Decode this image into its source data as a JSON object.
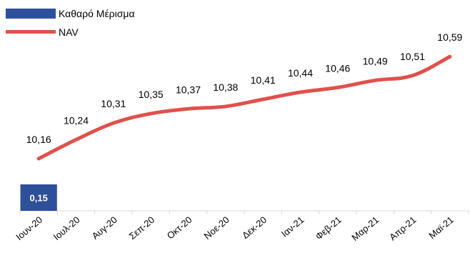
{
  "colors": {
    "dividend": "#2e4f9a",
    "nav": "#e0504c",
    "axis": "#d9d9d9"
  },
  "legend": {
    "dividend_label": "Καθαρό Μέρισμα",
    "nav_label": "NAV"
  },
  "chart_data": {
    "type": "line",
    "categories": [
      "Ιουν-20",
      "Ιουλ-20",
      "Αυγ-20",
      "Σεπ-20",
      "Οκτ-20",
      "Νοε-20",
      "Δεκ-20",
      "Ιαν-21",
      "Φεβ-21",
      "Μαρ-21",
      "Απρ-21",
      "Μαϊ-21"
    ],
    "series": [
      {
        "name": "NAV",
        "type": "line",
        "values": [
          10.16,
          10.24,
          10.31,
          10.35,
          10.37,
          10.38,
          10.41,
          10.44,
          10.46,
          10.49,
          10.51,
          10.59
        ],
        "labels": [
          "10,16",
          "10,24",
          "10,31",
          "10,35",
          "10,37",
          "10,38",
          "10,41",
          "10,44",
          "10,46",
          "10,49",
          "10,51",
          "10,59"
        ]
      },
      {
        "name": "Καθαρό Μέρισμα",
        "type": "bar",
        "values": [
          0.15,
          null,
          null,
          null,
          null,
          null,
          null,
          null,
          null,
          null,
          null,
          null
        ],
        "labels": [
          "0,15",
          "",
          "",
          "",
          "",
          "",
          "",
          "",
          "",
          "",
          "",
          ""
        ]
      }
    ],
    "title": "",
    "xlabel": "",
    "ylabel": "",
    "nav_ylim": [
      9.94,
      10.66
    ],
    "dividend_ylim": [
      0,
      0.25
    ],
    "grid": false,
    "legend_position": "top-left"
  }
}
